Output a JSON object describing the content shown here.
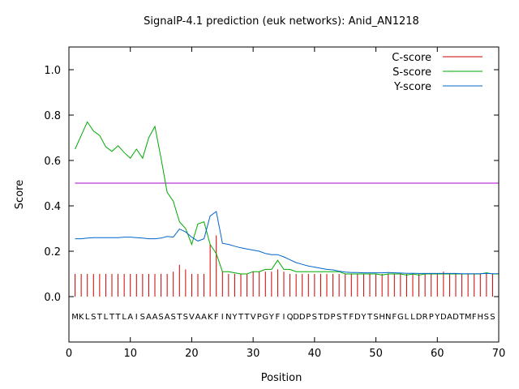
{
  "chart_data": {
    "type": "line",
    "title": "SignalP-4.1 prediction (euk networks): Anid_AN1218",
    "xlabel": "Position",
    "ylabel": "Score",
    "xlim": [
      0,
      70
    ],
    "ylim": [
      -0.2,
      1.1
    ],
    "xticks": [
      0,
      10,
      20,
      30,
      40,
      50,
      60,
      70
    ],
    "yticks": [
      0.0,
      0.2,
      0.4,
      0.6,
      0.8,
      1.0
    ],
    "xtick_labels": [
      "0",
      "10",
      "20",
      "30",
      "40",
      "50",
      "60",
      "70"
    ],
    "ytick_labels": [
      "0.0",
      "0.2",
      "0.4",
      "0.6",
      "0.8",
      "1.0"
    ],
    "grid": false,
    "legend_position": "top-right",
    "threshold": 0.5,
    "sequence": "MKLSTLTTLAISAASASTSVAAKFINYTTVPGYFIQDDPSTDPSTFDYTSHNFGLLDRPYDADTMFHSS",
    "series": [
      {
        "name": "C-score",
        "style": "impulses",
        "color": "#cc0000",
        "values": [
          0.1,
          0.1,
          0.1,
          0.1,
          0.1,
          0.1,
          0.1,
          0.1,
          0.1,
          0.1,
          0.1,
          0.1,
          0.1,
          0.1,
          0.1,
          0.1,
          0.11,
          0.14,
          0.12,
          0.1,
          0.1,
          0.1,
          0.23,
          0.27,
          0.11,
          0.1,
          0.1,
          0.1,
          0.1,
          0.11,
          0.11,
          0.11,
          0.11,
          0.12,
          0.11,
          0.1,
          0.1,
          0.1,
          0.1,
          0.1,
          0.1,
          0.1,
          0.1,
          0.1,
          0.1,
          0.1,
          0.1,
          0.1,
          0.1,
          0.1,
          0.1,
          0.1,
          0.1,
          0.1,
          0.1,
          0.1,
          0.1,
          0.1,
          0.1,
          0.1,
          0.11,
          0.1,
          0.1,
          0.1,
          0.1,
          0.1,
          0.1,
          0.1,
          0.1,
          0.1
        ]
      },
      {
        "name": "S-score",
        "style": "line",
        "color": "#00aa00",
        "values": [
          0.65,
          0.71,
          0.77,
          0.73,
          0.71,
          0.66,
          0.64,
          0.665,
          0.635,
          0.61,
          0.65,
          0.61,
          0.7,
          0.75,
          0.61,
          0.46,
          0.42,
          0.33,
          0.3,
          0.23,
          0.32,
          0.33,
          0.23,
          0.19,
          0.11,
          0.11,
          0.105,
          0.1,
          0.1,
          0.11,
          0.11,
          0.12,
          0.12,
          0.16,
          0.12,
          0.12,
          0.11,
          0.11,
          0.11,
          0.11,
          0.11,
          0.11,
          0.11,
          0.11,
          0.1,
          0.1,
          0.1,
          0.1,
          0.1,
          0.1,
          0.095,
          0.1,
          0.1,
          0.1,
          0.095,
          0.1,
          0.095,
          0.1,
          0.1,
          0.1,
          0.1,
          0.1,
          0.1,
          0.1,
          0.1,
          0.1,
          0.1,
          0.105,
          0.1,
          0.1
        ]
      },
      {
        "name": "Y-score",
        "style": "line",
        "color": "#0066cc",
        "values": [
          0.255,
          0.255,
          0.258,
          0.26,
          0.26,
          0.26,
          0.26,
          0.26,
          0.262,
          0.262,
          0.26,
          0.258,
          0.255,
          0.255,
          0.258,
          0.265,
          0.262,
          0.298,
          0.285,
          0.262,
          0.245,
          0.255,
          0.355,
          0.375,
          0.235,
          0.23,
          0.222,
          0.215,
          0.21,
          0.205,
          0.2,
          0.19,
          0.185,
          0.185,
          0.175,
          0.162,
          0.15,
          0.142,
          0.135,
          0.13,
          0.125,
          0.12,
          0.118,
          0.112,
          0.108,
          0.106,
          0.106,
          0.105,
          0.105,
          0.105,
          0.105,
          0.106,
          0.105,
          0.104,
          0.103,
          0.103,
          0.102,
          0.102,
          0.102,
          0.102,
          0.102,
          0.102,
          0.102,
          0.101,
          0.101,
          0.101,
          0.101,
          0.102,
          0.101,
          0.101
        ]
      },
      {
        "name": "",
        "style": "hline",
        "color": "#aa00cc",
        "values": [
          0.5
        ]
      }
    ]
  }
}
